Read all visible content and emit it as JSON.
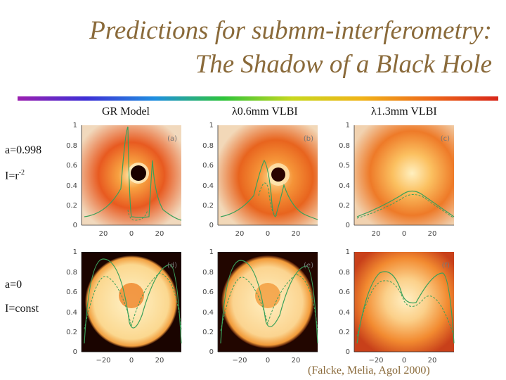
{
  "title_line1": "Predictions for submm-interferometry:",
  "title_line2": "The Shadow of a Black Hole",
  "columns": [
    "GR Model",
    "λ0.6mm VLBI",
    "λ1.3mm VLBI"
  ],
  "rows": [
    {
      "label1": "a=0.998",
      "label2_base": "I=r",
      "label2_sup": "-2"
    },
    {
      "label1": "a=0",
      "label2_base": "I=const",
      "label2_sup": ""
    }
  ],
  "panels": [
    {
      "tag": "(a)",
      "y_ticks": [
        "1",
        "0.8",
        "0.6",
        "0.4",
        "0.2",
        "0"
      ],
      "x_ticks": [
        "20",
        "0",
        "20"
      ]
    },
    {
      "tag": "(b)",
      "y_ticks": [
        "1",
        "0.8",
        "0.6",
        "0.4",
        "0.2",
        "0"
      ],
      "x_ticks": [
        "20",
        "0",
        "20"
      ]
    },
    {
      "tag": "(c)",
      "y_ticks": [
        "1",
        "0.8",
        "0.5",
        "0.4",
        "0.2",
        "0"
      ],
      "x_ticks": [
        "20",
        "0",
        "20"
      ]
    },
    {
      "tag": "(d)",
      "y_ticks": [
        "1",
        "0.8",
        "0.6",
        "0.4",
        "0.2",
        "0"
      ],
      "x_ticks": [
        "−20",
        "0",
        "20"
      ]
    },
    {
      "tag": "(e)",
      "y_ticks": [
        "1",
        "0.8",
        "0.6",
        "0.4",
        "0.2",
        "0"
      ],
      "x_ticks": [
        "−20",
        "0",
        "20"
      ]
    },
    {
      "tag": "(f)",
      "y_ticks": [
        "1",
        "0.8",
        "0.6",
        "0.4",
        "0.2",
        "0"
      ],
      "x_ticks": [
        "−20",
        "0",
        "20"
      ]
    }
  ],
  "citation": "(Falcke, Melia, Agol 2000)",
  "colors": {
    "title": "#8a6a3a",
    "curve": "#3aa05a",
    "shadow": "#1a0000",
    "glow_core": "#ffe9a8",
    "glow_edge": "#e8491a"
  }
}
